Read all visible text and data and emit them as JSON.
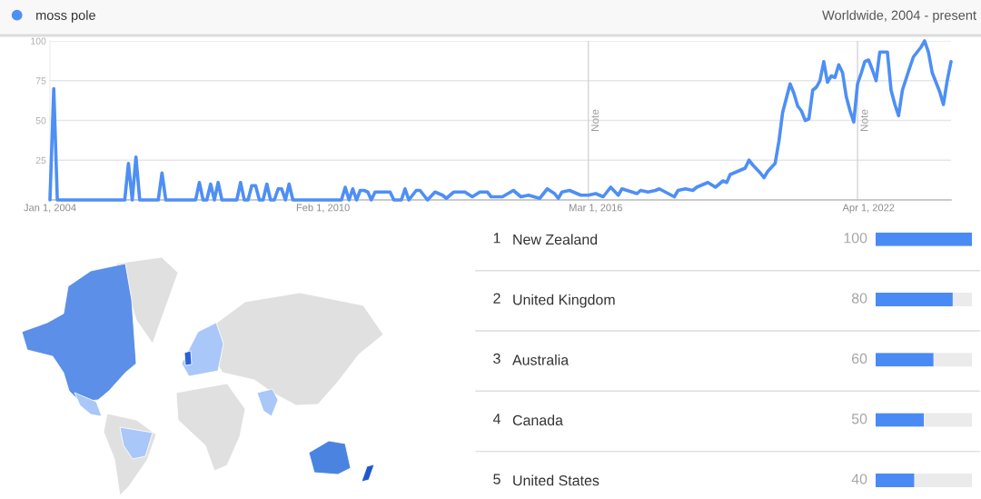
{
  "chart_data": [
    {
      "type": "line",
      "subtitle": "Worldwide, 2004 - present",
      "series": [
        {
          "name": "moss pole",
          "color": "#4e8ff5",
          "x": [
            "2004-01",
            "2004-02",
            "2004-03",
            "2005-09",
            "2005-10",
            "2005-11",
            "2005-12",
            "2006-01",
            "2006-06",
            "2006-07",
            "2006-08",
            "2007-04",
            "2007-05",
            "2007-06",
            "2007-07",
            "2007-08",
            "2007-09",
            "2007-10",
            "2007-11",
            "2008-03",
            "2008-04",
            "2008-05",
            "2008-06",
            "2008-07",
            "2008-08",
            "2008-09",
            "2008-10",
            "2008-11",
            "2008-12",
            "2009-01",
            "2009-02",
            "2009-03",
            "2009-04",
            "2009-05",
            "2009-06",
            "2010-07",
            "2010-08",
            "2010-09",
            "2010-10",
            "2010-11",
            "2010-12",
            "2011-01",
            "2011-02",
            "2011-03",
            "2011-04",
            "2011-06",
            "2011-08",
            "2011-09",
            "2011-11",
            "2011-12",
            "2012-01",
            "2012-03",
            "2012-04",
            "2012-06",
            "2012-08",
            "2012-10",
            "2012-11",
            "2013-01",
            "2013-04",
            "2013-06",
            "2013-08",
            "2013-10",
            "2013-11",
            "2014-02",
            "2014-05",
            "2014-07",
            "2014-09",
            "2014-12",
            "2015-02",
            "2015-04",
            "2015-05",
            "2015-06",
            "2015-08",
            "2015-11",
            "2016-01",
            "2016-03",
            "2016-05",
            "2016-07",
            "2016-09",
            "2016-10",
            "2017-02",
            "2017-03",
            "2017-05",
            "2017-07",
            "2017-08",
            "2017-12",
            "2018-01",
            "2018-03",
            "2018-05",
            "2018-06",
            "2018-08",
            "2018-09",
            "2018-11",
            "2019-01",
            "2019-02",
            "2019-03",
            "2019-04",
            "2019-07",
            "2019-08",
            "2019-09",
            "2019-11",
            "2019-12",
            "2020-01",
            "2020-03",
            "2020-04",
            "2020-05",
            "2020-07",
            "2020-08",
            "2020-09",
            "2020-10",
            "2020-11",
            "2020-12",
            "2021-01",
            "2021-02",
            "2021-03",
            "2021-04",
            "2021-05",
            "2021-06",
            "2021-07",
            "2021-08",
            "2021-09",
            "2021-10",
            "2021-11",
            "2021-12",
            "2022-01",
            "2022-02",
            "2022-03",
            "2022-04",
            "2022-05",
            "2022-06",
            "2022-07",
            "2022-09",
            "2022-10",
            "2022-11",
            "2022-12",
            "2023-01",
            "2023-03",
            "2023-04",
            "2023-06",
            "2023-07",
            "2023-08",
            "2023-09",
            "2023-11",
            "2023-12",
            "2024-01",
            "2024-02"
          ],
          "values": [
            0,
            70,
            0,
            0,
            23,
            0,
            27,
            0,
            0,
            17,
            0,
            0,
            11,
            0,
            0,
            10,
            0,
            11,
            0,
            0,
            11,
            0,
            0,
            9,
            9,
            0,
            0,
            10,
            0,
            0,
            7,
            7,
            0,
            10,
            0,
            0,
            8,
            0,
            7,
            0,
            6,
            6,
            5,
            0,
            5,
            5,
            5,
            0,
            0,
            7,
            0,
            6,
            6,
            0,
            5,
            3,
            1,
            5,
            5,
            2,
            5,
            5,
            2,
            2,
            6,
            2,
            3,
            1,
            7,
            4,
            1,
            5,
            6,
            3,
            3,
            4,
            2,
            8,
            3,
            7,
            4,
            6,
            5,
            6,
            7,
            2,
            6,
            7,
            6,
            8,
            10,
            11,
            8,
            12,
            11,
            16,
            17,
            20,
            25,
            22,
            17,
            14,
            18,
            23,
            37,
            55,
            73,
            67,
            59,
            56,
            50,
            51,
            69,
            71,
            75,
            87,
            74,
            78,
            77,
            85,
            80,
            65,
            56,
            49,
            73,
            80,
            87,
            88,
            82,
            75,
            93,
            93,
            69,
            60,
            53,
            69,
            83,
            90,
            96,
            100,
            93,
            80,
            68,
            60,
            75,
            87
          ]
        }
      ],
      "xlim": [
        "2004-01-01",
        "2024-02-01"
      ],
      "xticks": [
        {
          "value": "2004-01-01",
          "label": "Jan 1, 2004"
        },
        {
          "value": "2010-02-01",
          "label": "Feb 1, 2010"
        },
        {
          "value": "2016-03-01",
          "label": "Mar 1, 2016"
        },
        {
          "value": "2022-04-01",
          "label": "Apr 1, 2022"
        }
      ],
      "ylim": [
        0,
        100
      ],
      "yticks": [
        {
          "value": 0,
          "label": null
        },
        25,
        50,
        75,
        100
      ],
      "grid": "y",
      "legend": "top left",
      "ref_lines": [
        {
          "axis": "x",
          "value": "2016-01-01",
          "label": "Note"
        },
        {
          "axis": "x",
          "value": "2022-01-01",
          "label": "Note"
        }
      ]
    },
    {
      "type": "bar",
      "orientation": "horizontal",
      "categories": [
        "New Zealand",
        "United Kingdom",
        "Australia",
        "Canada",
        "United States"
      ],
      "values": [
        100,
        80,
        60,
        50,
        40
      ],
      "color": "#4a8af4",
      "xlim": [
        0,
        100
      ],
      "data_labels": true,
      "tick_labels": "y",
      "annotations": [
        "1",
        "2",
        "3",
        "4",
        "5"
      ]
    }
  ]
}
